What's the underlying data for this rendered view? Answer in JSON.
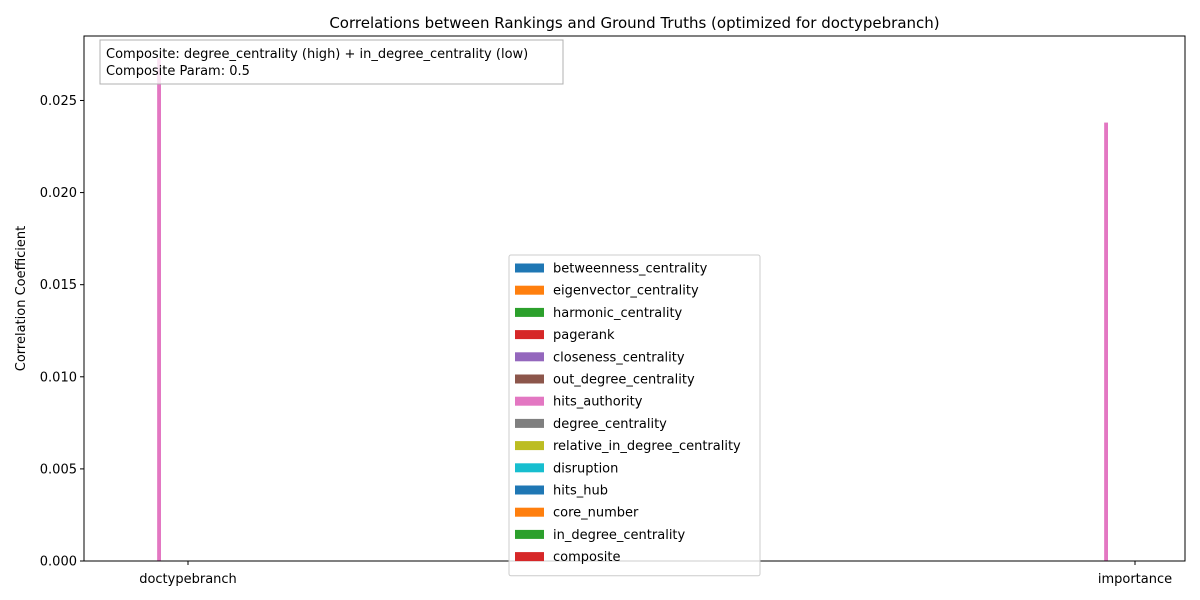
{
  "chart_data": {
    "type": "bar",
    "title": "Correlations between Rankings and Ground Truths (optimized for doctypebranch)",
    "xlabel": "",
    "ylabel": "Correlation Coefficient",
    "categories": [
      "doctypebranch",
      "importance"
    ],
    "ylim": [
      0,
      0.0285
    ],
    "yticks": [
      0.0,
      0.005,
      0.01,
      0.015,
      0.02,
      0.025
    ],
    "ytick_labels": [
      "0.000",
      "0.005",
      "0.010",
      "0.015",
      "0.020",
      "0.025"
    ],
    "grid": false,
    "legend_position": "lower-center",
    "annotation": [
      "Composite: degree_centrality (high) + in_degree_centrality (low)",
      "Composite Param: 0.5"
    ],
    "series": [
      {
        "name": "betweenness_centrality",
        "color": "#1f77b4",
        "values": [
          0,
          0
        ]
      },
      {
        "name": "eigenvector_centrality",
        "color": "#ff7f0e",
        "values": [
          0,
          0
        ]
      },
      {
        "name": "harmonic_centrality",
        "color": "#2ca02c",
        "values": [
          0,
          0
        ]
      },
      {
        "name": "pagerank",
        "color": "#d62728",
        "values": [
          0,
          0
        ]
      },
      {
        "name": "closeness_centrality",
        "color": "#9467bd",
        "values": [
          0,
          0
        ]
      },
      {
        "name": "out_degree_centrality",
        "color": "#8c564b",
        "values": [
          0,
          0
        ]
      },
      {
        "name": "hits_authority",
        "color": "#e377c2",
        "values": [
          0.0273,
          0.0238
        ]
      },
      {
        "name": "degree_centrality",
        "color": "#7f7f7f",
        "values": [
          0,
          0
        ]
      },
      {
        "name": "relative_in_degree_centrality",
        "color": "#bcbd22",
        "values": [
          0,
          0
        ]
      },
      {
        "name": "disruption",
        "color": "#17becf",
        "values": [
          0,
          0
        ]
      },
      {
        "name": "hits_hub",
        "color": "#1f77b4",
        "values": [
          0,
          0
        ]
      },
      {
        "name": "core_number",
        "color": "#ff7f0e",
        "values": [
          0,
          0
        ]
      },
      {
        "name": "in_degree_centrality",
        "color": "#2ca02c",
        "values": [
          0,
          0
        ]
      },
      {
        "name": "composite",
        "color": "#d62728",
        "values": [
          0,
          0
        ]
      }
    ]
  }
}
